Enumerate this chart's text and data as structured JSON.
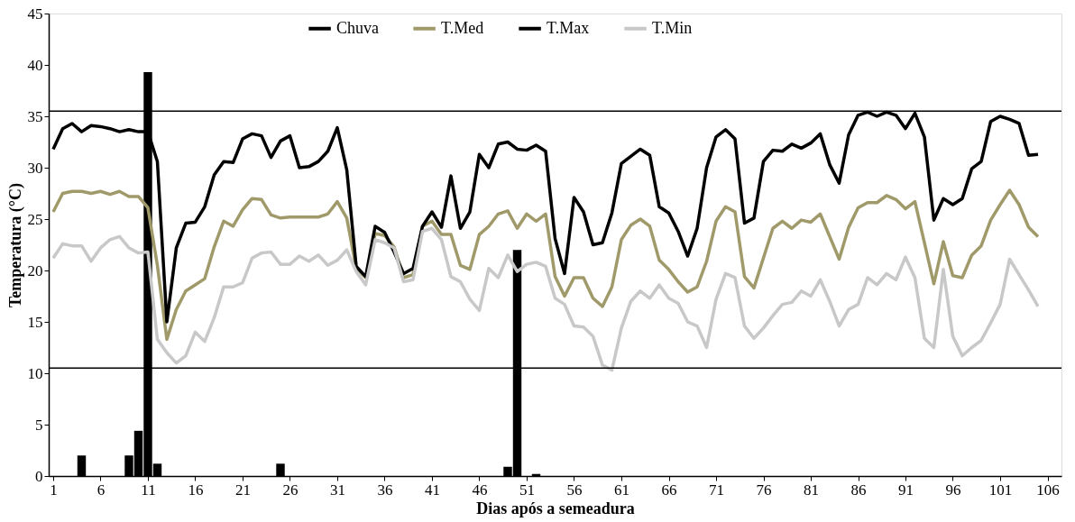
{
  "chart_data": {
    "type": "line",
    "xlabel": "Dias após a semeadura",
    "ylabel": "Temperatura (°C)",
    "x": [
      1,
      2,
      3,
      4,
      5,
      6,
      7,
      8,
      9,
      10,
      11,
      12,
      13,
      14,
      15,
      16,
      17,
      18,
      19,
      20,
      21,
      22,
      23,
      24,
      25,
      26,
      27,
      28,
      29,
      30,
      31,
      32,
      33,
      34,
      35,
      36,
      37,
      38,
      39,
      40,
      41,
      42,
      43,
      44,
      45,
      46,
      47,
      48,
      49,
      50,
      51,
      52,
      53,
      54,
      55,
      56,
      57,
      58,
      59,
      60,
      61,
      62,
      63,
      64,
      65,
      66,
      67,
      68,
      69,
      70,
      71,
      72,
      73,
      74,
      75,
      76,
      77,
      78,
      79,
      80,
      81,
      82,
      83,
      84,
      85,
      86,
      87,
      88,
      89,
      90,
      91,
      92,
      93,
      94,
      95,
      96,
      97,
      98,
      99,
      100,
      101,
      102,
      103,
      104,
      105
    ],
    "series": [
      {
        "name": "Chuva",
        "type": "bar",
        "color": "#000000",
        "values": [
          0,
          0,
          0,
          2.0,
          0,
          0,
          0,
          0,
          2.0,
          4.4,
          39.3,
          1.2,
          0,
          0,
          0,
          0,
          0,
          0,
          0,
          0,
          0,
          0,
          0,
          0,
          1.2,
          0,
          0,
          0,
          0,
          0,
          0,
          0,
          0,
          0,
          0,
          0,
          0,
          0,
          0,
          0,
          0,
          0,
          0,
          0,
          0,
          0,
          0,
          0,
          0.9,
          22.0,
          0,
          0.2,
          0,
          0,
          0,
          0,
          0,
          0,
          0,
          0,
          0,
          0,
          0,
          0,
          0,
          0,
          0,
          0,
          0,
          0,
          0,
          0,
          0,
          0,
          0,
          0,
          0,
          0,
          0,
          0,
          0,
          0,
          0,
          0,
          0,
          0,
          0,
          0,
          0,
          0,
          0,
          0,
          0,
          0,
          0,
          0,
          0,
          0,
          0,
          0,
          0,
          0,
          0,
          0,
          0
        ]
      },
      {
        "name": "T.Med",
        "color": "#a09a6a",
        "values": [
          25.7,
          27.5,
          27.7,
          27.7,
          27.5,
          27.7,
          27.4,
          27.7,
          27.2,
          27.2,
          26.1,
          20.5,
          13.3,
          16.2,
          18.0,
          18.6,
          19.2,
          22.3,
          24.8,
          24.3,
          25.9,
          27.0,
          26.9,
          25.4,
          25.1,
          25.2,
          25.2,
          25.2,
          25.2,
          25.5,
          26.7,
          25.1,
          20.2,
          19.3,
          23.6,
          23.4,
          22.3,
          19.3,
          19.6,
          24.3,
          24.8,
          23.5,
          23.5,
          20.5,
          20.1,
          23.5,
          24.3,
          25.5,
          25.8,
          24.1,
          25.5,
          24.8,
          25.5,
          19.4,
          17.5,
          19.3,
          19.3,
          17.3,
          16.5,
          18.4,
          23.0,
          24.4,
          25.0,
          24.3,
          21.0,
          20.1,
          18.9,
          17.9,
          18.4,
          20.9,
          24.8,
          26.2,
          25.7,
          19.4,
          18.3,
          21.2,
          24.1,
          24.8,
          24.1,
          24.9,
          24.7,
          25.5,
          23.3,
          21.1,
          24.2,
          26.1,
          26.6,
          26.6,
          27.3,
          26.9,
          26.0,
          26.7,
          22.7,
          18.7,
          22.8,
          19.5,
          19.3,
          21.5,
          22.4,
          24.9,
          26.4,
          27.8,
          26.4,
          24.2,
          23.3
        ]
      },
      {
        "name": "T.Max",
        "color": "#000000",
        "values": [
          31.8,
          33.8,
          34.3,
          33.5,
          34.1,
          34.0,
          33.8,
          33.5,
          33.7,
          33.5,
          33.5,
          30.6,
          15.0,
          22.2,
          24.6,
          24.7,
          26.2,
          29.3,
          30.6,
          30.5,
          32.8,
          33.3,
          33.1,
          31.0,
          32.6,
          33.1,
          30.0,
          30.1,
          30.6,
          31.6,
          33.9,
          29.8,
          20.4,
          19.4,
          24.3,
          23.7,
          21.8,
          19.7,
          20.2,
          24.3,
          25.7,
          24.2,
          29.2,
          24.1,
          25.7,
          31.3,
          30.0,
          32.3,
          32.5,
          31.8,
          31.7,
          32.2,
          31.6,
          23.1,
          19.7,
          27.1,
          25.7,
          22.5,
          22.7,
          25.6,
          30.4,
          31.1,
          31.8,
          31.2,
          26.2,
          25.6,
          23.8,
          21.4,
          24.1,
          30.0,
          33.0,
          33.7,
          32.8,
          24.6,
          25.1,
          30.6,
          31.7,
          31.6,
          32.3,
          31.9,
          32.4,
          33.3,
          30.3,
          28.5,
          33.2,
          35.1,
          35.4,
          35.0,
          35.4,
          35.1,
          33.8,
          35.3,
          33.0,
          24.9,
          27.0,
          26.4,
          27.0,
          29.9,
          30.6,
          34.5,
          35.0,
          34.7,
          34.3,
          31.2,
          31.3
        ]
      },
      {
        "name": "T.Min",
        "color": "#c8c8c8",
        "values": [
          21.2,
          22.6,
          22.4,
          22.4,
          20.9,
          22.2,
          23.0,
          23.3,
          22.2,
          21.7,
          21.8,
          13.3,
          12.0,
          11.0,
          11.7,
          14.0,
          13.1,
          15.4,
          18.4,
          18.4,
          18.8,
          21.2,
          21.7,
          21.8,
          20.6,
          20.6,
          21.4,
          20.9,
          21.5,
          20.5,
          21.0,
          22.0,
          19.9,
          18.6,
          23.0,
          22.7,
          22.2,
          18.9,
          19.1,
          23.8,
          24.1,
          23.0,
          19.4,
          18.9,
          17.2,
          16.1,
          20.2,
          19.3,
          21.5,
          19.9,
          20.6,
          20.8,
          20.4,
          17.3,
          16.7,
          14.6,
          14.5,
          13.6,
          10.8,
          10.3,
          14.4,
          17.0,
          18.0,
          17.3,
          18.6,
          17.3,
          16.8,
          15.0,
          14.6,
          12.5,
          17.2,
          19.7,
          19.3,
          14.6,
          13.4,
          14.4,
          15.6,
          16.7,
          16.9,
          18.0,
          17.5,
          19.1,
          17.0,
          14.6,
          16.2,
          16.7,
          19.3,
          18.6,
          19.7,
          19.1,
          21.3,
          19.3,
          13.4,
          12.5,
          20.1,
          13.6,
          11.7,
          12.5,
          13.2,
          14.9,
          16.7,
          21.1,
          19.6,
          18.1,
          16.5
        ]
      }
    ],
    "xlim": [
      1,
      107
    ],
    "xticks": [
      1,
      6,
      11,
      16,
      21,
      26,
      31,
      36,
      41,
      46,
      51,
      56,
      61,
      66,
      71,
      76,
      81,
      86,
      91,
      96,
      101,
      106
    ],
    "ylim": [
      0,
      45
    ],
    "yticks": [
      0,
      5,
      10,
      15,
      20,
      25,
      30,
      35,
      40,
      45
    ],
    "ref_lines": [
      {
        "axis": "y",
        "value": 35.5,
        "color": "#000000"
      },
      {
        "axis": "y",
        "value": 10.5,
        "color": "#000000"
      }
    ],
    "grid": false,
    "legend": "top",
    "marker": "none",
    "line_style": "solid"
  }
}
